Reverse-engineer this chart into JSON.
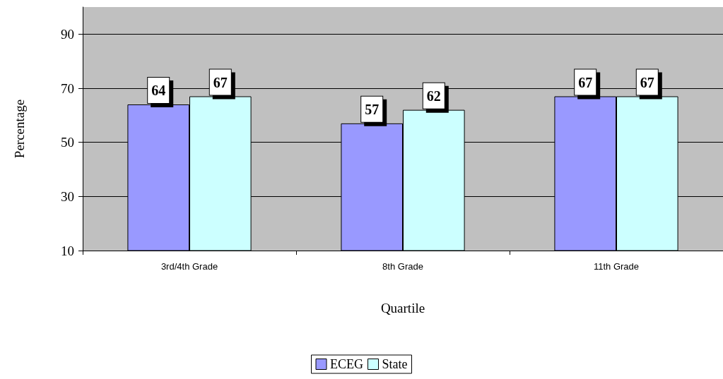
{
  "chart_data": {
    "type": "bar",
    "xlabel": "Quartile",
    "ylabel": "Percentage",
    "categories": [
      "3rd/4th Grade",
      "8th Grade",
      "11th Grade"
    ],
    "series": [
      {
        "name": "ECEG",
        "color": "#9999ff",
        "values": [
          64,
          57,
          67
        ]
      },
      {
        "name": "State",
        "color": "#ccffff",
        "values": [
          67,
          62,
          67
        ]
      }
    ],
    "ylim": [
      10,
      100
    ],
    "yticks": [
      10,
      30,
      50,
      70,
      90
    ],
    "grid": "y",
    "legend": "bottom",
    "data_labels": true
  }
}
